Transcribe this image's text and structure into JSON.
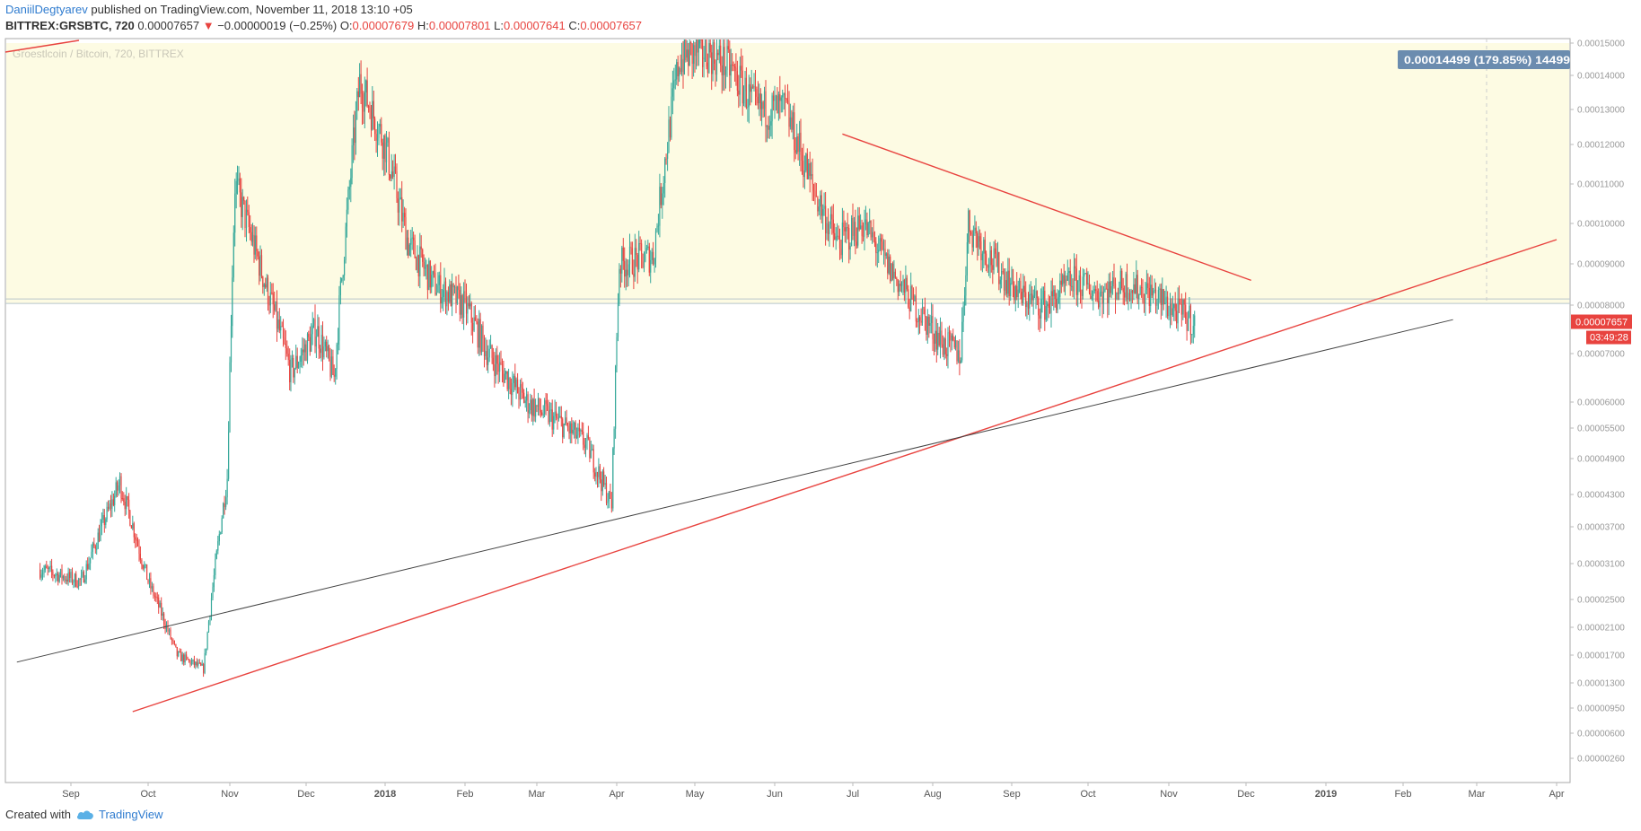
{
  "header": {
    "author": "DaniilDegtyarev",
    "published": "published on TradingView.com, November 11, 2018 13:10 +05",
    "symbol": "BITTREX:GRSBTC, 720",
    "last": "0.00007657",
    "change_arrow": "▼",
    "change": "−0.00000019 (−0.25%)",
    "o_label": "O:",
    "o": "0.00007679",
    "h_label": "H:",
    "h": "0.00007801",
    "l_label": "L:",
    "l": "0.00007641",
    "c_label": "C:",
    "c": "0.00007657"
  },
  "watermark": "Groestlcoin / Bitcoin, 720, BITTREX",
  "footer": {
    "created": "Created with",
    "brand": "TradingView",
    "logo_icon": "tradingview-cloud-icon"
  },
  "colors": {
    "up": "#36a89a",
    "down": "#e8433f",
    "zone": "#fdfbe3",
    "trend_red": "#e8433f",
    "trend_black": "#444444",
    "measure_label": "#6b8caf"
  },
  "chart_data": {
    "type": "candlestick",
    "title": "Groestlcoin / Bitcoin, 720, BITTREX",
    "x_ticks": [
      "Sep",
      "Oct",
      "Nov",
      "Dec",
      "2018",
      "Feb",
      "Mar",
      "Apr",
      "May",
      "Jun",
      "Jul",
      "Aug",
      "Sep",
      "Oct",
      "Nov",
      "Dec",
      "2019",
      "Feb",
      "Mar",
      "Apr"
    ],
    "y_ticks": [
      "0.00015000",
      "0.00014000",
      "0.00013000",
      "0.00012000",
      "0.00011000",
      "0.00010000",
      "0.00009000",
      "0.00008000",
      "0.00007000",
      "0.00006000",
      "0.00005500",
      "0.00004900",
      "0.00004300",
      "0.00003700",
      "0.00003100",
      "0.00002500",
      "0.00002100",
      "0.00001700",
      "0.00001300",
      "0.00000950",
      "0.00000600",
      "0.00000260"
    ],
    "price_series_anchors": [
      {
        "date": "2017-08-20",
        "close": 3e-05
      },
      {
        "date": "2017-09-05",
        "close": 2.8e-05
      },
      {
        "date": "2017-09-20",
        "close": 4.5e-05
      },
      {
        "date": "2017-10-01",
        "close": 2.8e-05
      },
      {
        "date": "2017-10-12",
        "close": 1.7e-05
      },
      {
        "date": "2017-10-22",
        "close": 1.5e-05
      },
      {
        "date": "2017-10-31",
        "close": 4.6e-05
      },
      {
        "date": "2017-11-03",
        "close": 0.00011
      },
      {
        "date": "2017-11-15",
        "close": 8.5e-05
      },
      {
        "date": "2017-11-25",
        "close": 6.6e-05
      },
      {
        "date": "2017-12-05",
        "close": 7.5e-05
      },
      {
        "date": "2017-12-12",
        "close": 6.5e-05
      },
      {
        "date": "2017-12-22",
        "close": 0.000138
      },
      {
        "date": "2018-01-01",
        "close": 0.00012
      },
      {
        "date": "2018-01-10",
        "close": 9.5e-05
      },
      {
        "date": "2018-01-20",
        "close": 8.5e-05
      },
      {
        "date": "2018-02-01",
        "close": 8e-05
      },
      {
        "date": "2018-02-10",
        "close": 7e-05
      },
      {
        "date": "2018-02-25",
        "close": 6e-05
      },
      {
        "date": "2018-03-10",
        "close": 5.6e-05
      },
      {
        "date": "2018-03-20",
        "close": 5.2e-05
      },
      {
        "date": "2018-03-30",
        "close": 4.1e-05
      },
      {
        "date": "2018-04-02",
        "close": 9e-05
      },
      {
        "date": "2018-04-15",
        "close": 9.2e-05
      },
      {
        "date": "2018-04-25",
        "close": 0.000145
      },
      {
        "date": "2018-05-05",
        "close": 0.000148
      },
      {
        "date": "2018-05-15",
        "close": 0.000142
      },
      {
        "date": "2018-05-25",
        "close": 0.00013
      },
      {
        "date": "2018-06-05",
        "close": 0.00013
      },
      {
        "date": "2018-06-15",
        "close": 0.00011
      },
      {
        "date": "2018-06-25",
        "close": 9.5e-05
      },
      {
        "date": "2018-07-05",
        "close": 0.0001
      },
      {
        "date": "2018-07-15",
        "close": 8.9e-05
      },
      {
        "date": "2018-07-25",
        "close": 8e-05
      },
      {
        "date": "2018-08-05",
        "close": 7.2e-05
      },
      {
        "date": "2018-08-12",
        "close": 7e-05
      },
      {
        "date": "2018-08-15",
        "close": 0.0001
      },
      {
        "date": "2018-08-25",
        "close": 9e-05
      },
      {
        "date": "2018-09-05",
        "close": 8.2e-05
      },
      {
        "date": "2018-09-15",
        "close": 8e-05
      },
      {
        "date": "2018-09-25",
        "close": 8.6e-05
      },
      {
        "date": "2018-10-05",
        "close": 8.3e-05
      },
      {
        "date": "2018-10-15",
        "close": 8.5e-05
      },
      {
        "date": "2018-10-25",
        "close": 8.3e-05
      },
      {
        "date": "2018-11-03",
        "close": 7.9e-05
      },
      {
        "date": "2018-11-11",
        "close": 7.66e-05
      }
    ],
    "last_price_label": "0.00007657",
    "countdown_label": "03:49:28",
    "measure_label": "0.00014499 (179.85%) 14499",
    "highlight_zone": {
      "from": 8.04e-05,
      "to": 0.00015
    },
    "trendlines": [
      {
        "name": "descending-resistance",
        "color": "red",
        "from": {
          "date": "2018-06-27",
          "price": 0.000123
        },
        "to": {
          "date": "2018-12-03",
          "price": 8.6e-05
        }
      },
      {
        "name": "ascending-support-red",
        "color": "red",
        "from": {
          "date": "2017-09-25",
          "price": 9e-06
        },
        "to": {
          "date": "2019-04-01",
          "price": 9.6e-05
        }
      },
      {
        "name": "ascending-support-black",
        "color": "black",
        "from": {
          "date": "2017-08-11",
          "price": 1.6e-05
        },
        "to": {
          "date": "2019-02-20",
          "price": 7.7e-05
        }
      }
    ]
  }
}
